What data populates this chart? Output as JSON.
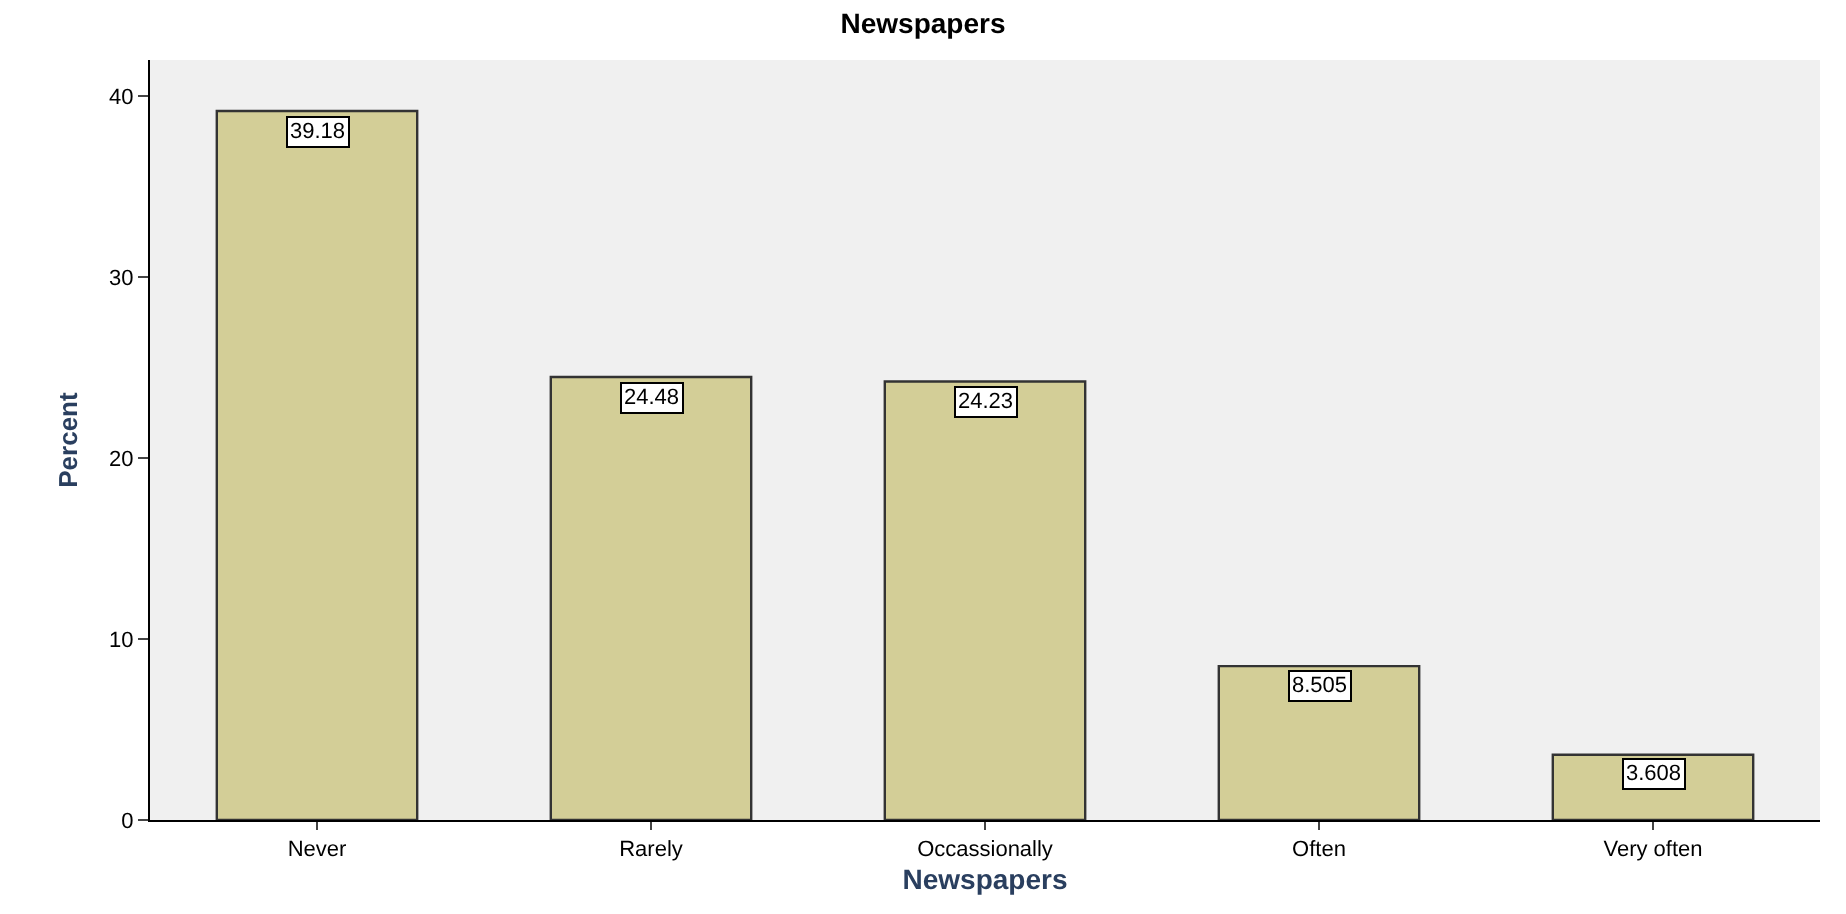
{
  "chart_data": {
    "type": "bar",
    "title": "Newspapers",
    "xlabel": "Newspapers",
    "ylabel": "Percent",
    "categories": [
      "Never",
      "Rarely",
      "Occassionally",
      "Often",
      "Very often"
    ],
    "values": [
      39.18,
      24.48,
      24.23,
      8.505,
      3.608
    ],
    "color": "#d3ce97",
    "ylim": [
      0,
      42
    ],
    "yticks": [
      0,
      10,
      20,
      30,
      40
    ],
    "grid": false,
    "data_labels": true
  }
}
